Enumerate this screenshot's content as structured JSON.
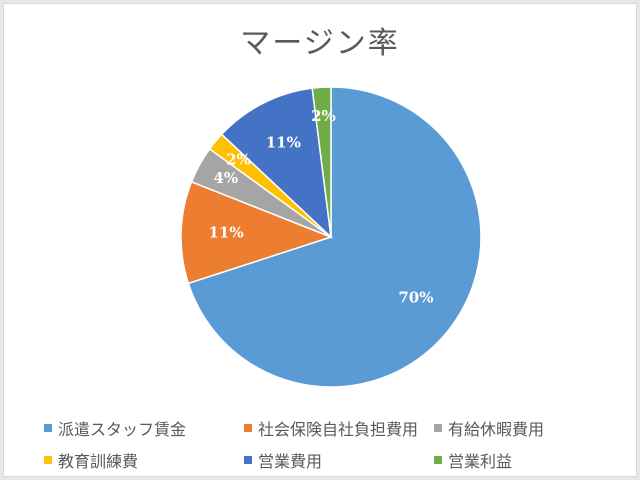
{
  "chart_data": {
    "type": "pie",
    "title": "マージン率",
    "categories": [
      "派遣スタッフ賃金",
      "社会保険自社負担費用",
      "有給休暇費用",
      "教育訓練費",
      "営業費用",
      "営業利益"
    ],
    "values": [
      70,
      11,
      4,
      2,
      11,
      2
    ],
    "data_labels": [
      "70%",
      "11%",
      "4%",
      "2%",
      "11%",
      "2%"
    ],
    "colors": [
      "#5b9bd5",
      "#ed7d31",
      "#a5a5a5",
      "#ffc000",
      "#4472c4",
      "#70ad47"
    ],
    "start_angle_deg": 0,
    "direction": "clockwise",
    "legend_position": "bottom"
  }
}
